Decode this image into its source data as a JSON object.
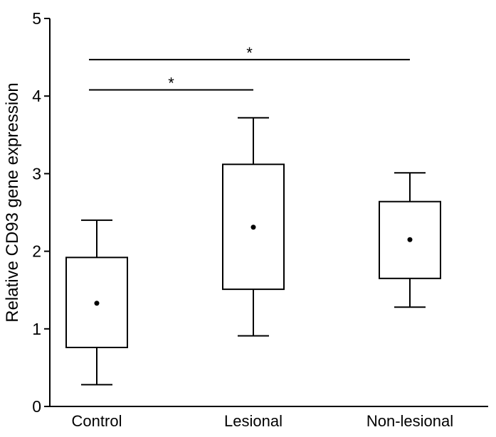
{
  "chart_data": {
    "type": "box",
    "ylabel": "Relative CD93 gene expression",
    "xlabel": "",
    "ylim": [
      0,
      5
    ],
    "yticks": [
      0,
      1,
      2,
      3,
      4,
      5
    ],
    "grid": false,
    "categories": [
      "Control",
      "Lesional",
      "Non-lesional"
    ],
    "boxes": [
      {
        "category": "Control",
        "whisker_low": 0.28,
        "q1": 0.76,
        "q3": 1.92,
        "whisker_high": 2.4,
        "mean": 1.33
      },
      {
        "category": "Lesional",
        "whisker_low": 0.91,
        "q1": 1.51,
        "q3": 3.12,
        "whisker_high": 3.72,
        "mean": 2.31
      },
      {
        "category": "Non-lesional",
        "whisker_low": 1.28,
        "q1": 1.65,
        "q3": 2.64,
        "whisker_high": 3.01,
        "mean": 2.15
      }
    ],
    "significance": [
      {
        "from": "Control",
        "to": "Lesional",
        "y": 4.08,
        "label": "*"
      },
      {
        "from": "Control",
        "to": "Non-lesional",
        "y": 4.47,
        "label": "*"
      }
    ],
    "colors": {
      "stroke": "#000000",
      "box_fill": "#ffffff",
      "background": "#ffffff"
    }
  }
}
